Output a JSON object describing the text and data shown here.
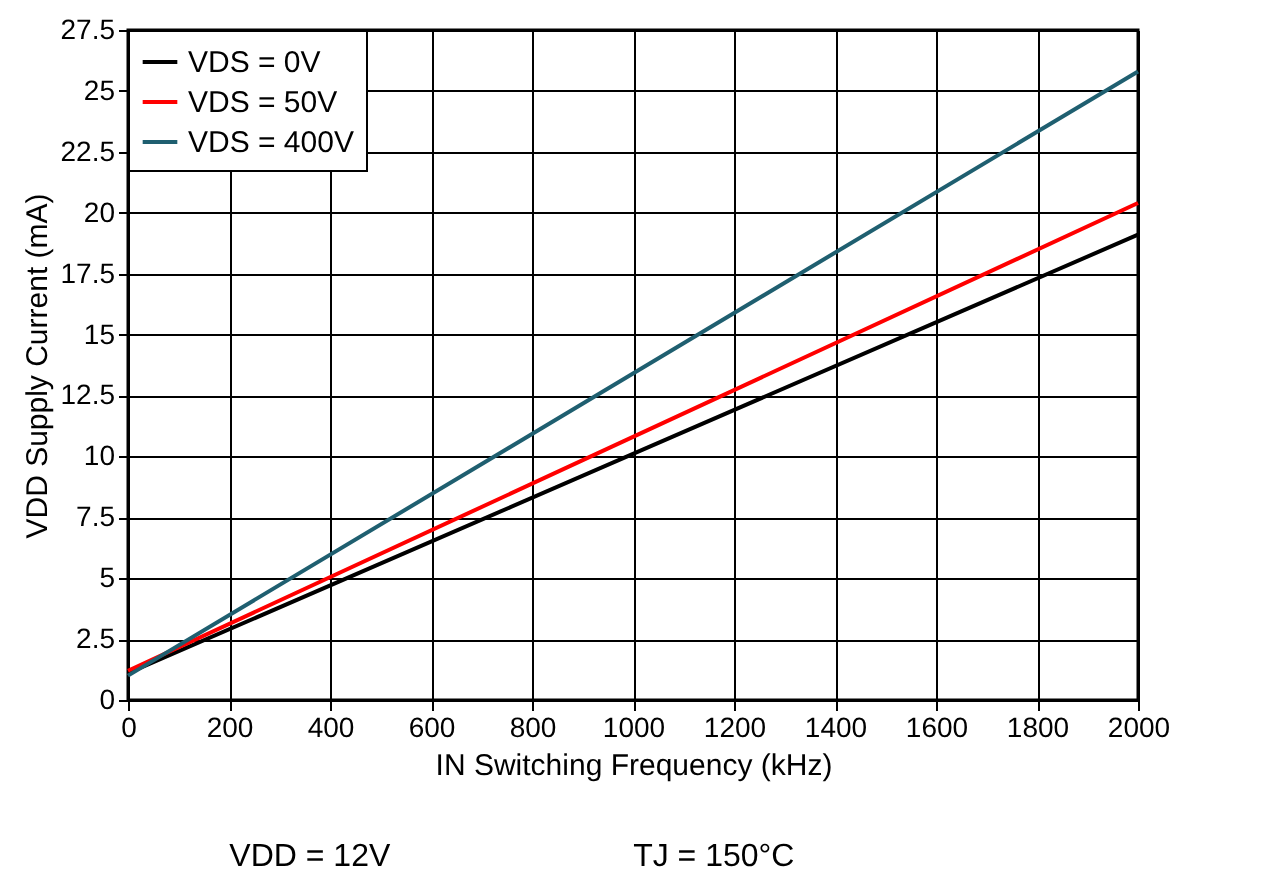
{
  "chart_data": {
    "type": "line",
    "x": [
      0,
      1000,
      2000
    ],
    "series": [
      {
        "name": "VDS = 0V",
        "color": "#000000",
        "values": [
          1.1,
          10.1,
          19.1
        ]
      },
      {
        "name": "VDS = 50V",
        "color": "#ff0000",
        "values": [
          1.2,
          10.8,
          20.4
        ]
      },
      {
        "name": "VDS = 400V",
        "color": "#1f5f70",
        "values": [
          1.0,
          13.4,
          25.8
        ]
      }
    ],
    "xlabel": "IN Switching Frequency (kHz)",
    "ylabel": "VDD Supply Current (mA)",
    "xlim": [
      0,
      2000
    ],
    "xticks": [
      0,
      200,
      400,
      600,
      800,
      1000,
      1200,
      1400,
      1600,
      1800,
      2000
    ],
    "ylim": [
      0,
      27.5
    ],
    "yticks": [
      0,
      2.5,
      5,
      7.5,
      10,
      12.5,
      15,
      17.5,
      20,
      22.5,
      25,
      27.5
    ],
    "grid": true,
    "legend": "top left",
    "line_style": "solid",
    "marker": "none",
    "annotations": [
      "VDD = 12V",
      "TJ = 150°C"
    ]
  }
}
